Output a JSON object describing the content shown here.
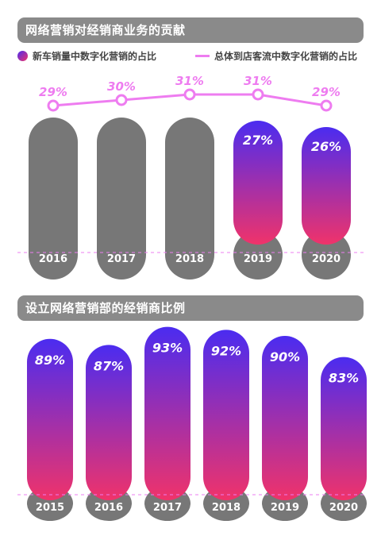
{
  "chart_data": [
    {
      "type": "bar",
      "title": "网络营销对经销商业务的贡献",
      "categories": [
        "2016",
        "2017",
        "2018",
        "2019",
        "2020"
      ],
      "series": [
        {
          "name": "新车销量中数字化营销的占比",
          "values": [
            null,
            null,
            null,
            27,
            26
          ],
          "labels": [
            "",
            "",
            "",
            "27%",
            "26%"
          ]
        },
        {
          "name": "总体到店客流中数字化营销的占比",
          "type": "line",
          "values": [
            29,
            30,
            31,
            31,
            29
          ],
          "labels": [
            "29%",
            "30%",
            "31%",
            "31%",
            "29%"
          ]
        }
      ],
      "legend": "top"
    },
    {
      "type": "bar",
      "title": "设立网络营销部的经销商比例",
      "categories": [
        "2015",
        "2016",
        "2017",
        "2018",
        "2019",
        "2020"
      ],
      "series": [
        {
          "name": "",
          "values": [
            89,
            87,
            93,
            92,
            90,
            83
          ],
          "labels": [
            "89%",
            "87%",
            "93%",
            "92%",
            "90%",
            "83%"
          ]
        }
      ]
    }
  ],
  "colors": {
    "banner": "#8a8a8a",
    "gray_bar": "#777777",
    "gradient_top": "#4b2cf0",
    "gradient_bottom": "#f0336a",
    "line": "#ee7cf0",
    "text_dark": "#444444"
  }
}
